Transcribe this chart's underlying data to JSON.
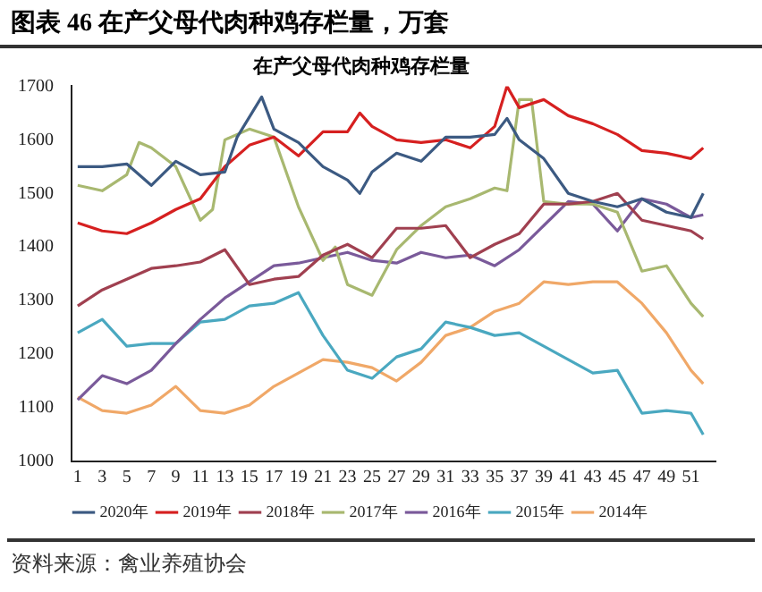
{
  "chart_data": {
    "type": "line",
    "title": "图表 46 在产父母代肉种鸡存栏量，万套",
    "subtitle": "在产父母代肉种鸡存栏量",
    "annotations": [
      "资料来源：禽业养殖协会"
    ],
    "x": [
      1,
      3,
      5,
      7,
      9,
      11,
      13,
      15,
      17,
      19,
      21,
      23,
      25,
      27,
      29,
      31,
      33,
      35,
      37,
      39,
      41,
      43,
      45,
      47,
      49,
      51,
      52
    ],
    "xlim": [
      0.5,
      53
    ],
    "xticks": [
      1,
      3,
      5,
      7,
      9,
      11,
      13,
      15,
      17,
      19,
      21,
      23,
      25,
      27,
      29,
      31,
      33,
      35,
      37,
      39,
      41,
      43,
      45,
      47,
      49,
      51
    ],
    "ylim": [
      1000,
      1700
    ],
    "yticks": [
      1000,
      1100,
      1200,
      1300,
      1400,
      1500,
      1600,
      1700
    ],
    "grid": false,
    "legend": "bottom",
    "marker": "none",
    "line_style": "solid",
    "series": [
      {
        "name": "2020年",
        "color": "#3c5a82",
        "x": [
          1,
          3,
          5,
          7,
          9,
          11,
          13,
          14,
          16,
          17,
          19,
          21,
          23,
          24,
          25,
          27,
          29,
          31,
          33,
          35,
          36,
          37,
          39,
          41,
          43,
          45,
          47,
          49,
          51,
          52
        ],
        "values": [
          1550,
          1550,
          1555,
          1515,
          1560,
          1535,
          1540,
          1605,
          1680,
          1620,
          1595,
          1550,
          1525,
          1500,
          1540,
          1575,
          1560,
          1605,
          1605,
          1610,
          1640,
          1600,
          1565,
          1500,
          1485,
          1475,
          1490,
          1465,
          1455,
          1500
        ]
      },
      {
        "name": "2019年",
        "color": "#d62020",
        "x": [
          1,
          3,
          5,
          7,
          9,
          11,
          13,
          15,
          17,
          19,
          21,
          23,
          24,
          25,
          27,
          29,
          31,
          33,
          35,
          36,
          37,
          39,
          41,
          43,
          45,
          47,
          49,
          51,
          52
        ],
        "values": [
          1445,
          1430,
          1425,
          1445,
          1470,
          1490,
          1550,
          1590,
          1605,
          1570,
          1615,
          1615,
          1650,
          1625,
          1600,
          1595,
          1600,
          1585,
          1625,
          1700,
          1660,
          1675,
          1645,
          1630,
          1610,
          1580,
          1575,
          1565,
          1585
        ]
      },
      {
        "name": "2018年",
        "color": "#a04050",
        "values": [
          1290,
          1320,
          1340,
          1360,
          1365,
          1372,
          1395,
          1330,
          1340,
          1345,
          1385,
          1405,
          1380,
          1435,
          1435,
          1440,
          1380,
          1405,
          1425,
          1480,
          1480,
          1485,
          1500,
          1450,
          1440,
          1430,
          1415
        ]
      },
      {
        "name": "2017年",
        "color": "#a8b870",
        "x": [
          1,
          3,
          5,
          6,
          7,
          9,
          11,
          12,
          13,
          15,
          17,
          19,
          21,
          22,
          23,
          25,
          27,
          29,
          31,
          33,
          35,
          36,
          37,
          38,
          39,
          41,
          43,
          45,
          47,
          49,
          51,
          52
        ],
        "values": [
          1515,
          1505,
          1535,
          1595,
          1585,
          1550,
          1450,
          1470,
          1600,
          1620,
          1605,
          1475,
          1375,
          1400,
          1330,
          1310,
          1395,
          1440,
          1475,
          1490,
          1510,
          1505,
          1675,
          1675,
          1485,
          1480,
          1480,
          1465,
          1355,
          1365,
          1295,
          1270
        ]
      },
      {
        "name": "2016年",
        "color": "#7a5a9a",
        "values": [
          1115,
          1160,
          1145,
          1170,
          1220,
          1265,
          1305,
          1335,
          1365,
          1370,
          1380,
          1390,
          1375,
          1370,
          1390,
          1380,
          1385,
          1365,
          1395,
          1440,
          1485,
          1480,
          1430,
          1490,
          1480,
          1455,
          1460
        ]
      },
      {
        "name": "2015年",
        "color": "#4aa8c0",
        "values": [
          1240,
          1265,
          1215,
          1220,
          1220,
          1260,
          1265,
          1290,
          1295,
          1315,
          1235,
          1170,
          1155,
          1195,
          1210,
          1260,
          1250,
          1235,
          1240,
          1215,
          1190,
          1165,
          1170,
          1090,
          1095,
          1090,
          1050
        ]
      },
      {
        "name": "2014年",
        "color": "#f0a868",
        "values": [
          1120,
          1095,
          1090,
          1105,
          1140,
          1095,
          1090,
          1105,
          1140,
          1165,
          1190,
          1185,
          1175,
          1150,
          1185,
          1235,
          1250,
          1280,
          1295,
          1335,
          1330,
          1335,
          1335,
          1295,
          1240,
          1170,
          1145
        ]
      }
    ]
  }
}
